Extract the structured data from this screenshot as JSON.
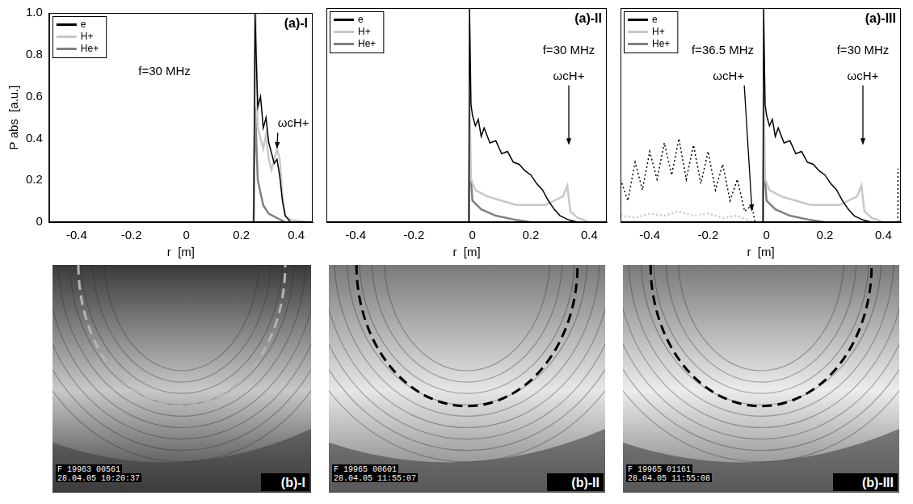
{
  "chart_data": [
    {
      "type": "line",
      "panel_label": "(a)-I",
      "x_label": "r  [m]",
      "y_label": "P abs  [a.u.]",
      "xlim": [
        -0.5,
        0.46
      ],
      "xticks": [
        -0.4,
        -0.2,
        0,
        0.2,
        0.4
      ],
      "ylim": [
        0,
        1
      ],
      "yticks": [
        0,
        0.2,
        0.4,
        0.6,
        0.8,
        {
          "value": 1,
          "label": "1.0"
        }
      ],
      "grid": false,
      "legend": "top-left",
      "annotations": [
        {
          "text": "f=30 MHz",
          "x": -0.08,
          "y": 0.72
        },
        {
          "text": "ωcH+",
          "x": 0.39,
          "y": 0.47,
          "arrow_to": [
            0.33,
            0.35
          ]
        }
      ],
      "series": [
        {
          "name": "e",
          "color": "#000000",
          "line_style": "solid",
          "x": [
            0.245,
            0.25,
            0.255,
            0.26,
            0.27,
            0.28,
            0.29,
            0.3,
            0.31,
            0.32,
            0.33,
            0.34,
            0.35,
            0.36,
            0.38,
            0.45
          ],
          "values": [
            0,
            1.0,
            0.75,
            0.55,
            0.6,
            0.45,
            0.5,
            0.38,
            0.33,
            0.28,
            0.3,
            0.22,
            0.1,
            0.03,
            0,
            0
          ]
        },
        {
          "name": "H+",
          "color": "#c8c8c8",
          "line_style": "solid",
          "x": [
            0.245,
            0.252,
            0.26,
            0.27,
            0.28,
            0.29,
            0.3,
            0.31,
            0.32,
            0.33,
            0.34,
            0.35,
            0.36,
            0.38,
            0.45
          ],
          "values": [
            0,
            1.0,
            0.45,
            0.4,
            0.35,
            0.42,
            0.3,
            0.25,
            0.3,
            0.35,
            0.3,
            0.12,
            0.03,
            0.01,
            0
          ]
        },
        {
          "name": "He+",
          "color": "#808080",
          "line_style": "solid",
          "x": [
            0.245,
            0.25,
            0.26,
            0.28,
            0.3,
            0.33,
            0.36
          ],
          "values": [
            0,
            0.55,
            0.2,
            0.08,
            0.04,
            0.02,
            0
          ]
        }
      ]
    },
    {
      "type": "line",
      "panel_label": "(a)-II",
      "x_label": "r  [m]",
      "xlim": [
        -0.5,
        0.46
      ],
      "xticks": [
        -0.4,
        -0.2,
        0,
        0.2,
        0.4
      ],
      "ylim": [
        0,
        1
      ],
      "yticks": [
        0,
        0.2,
        0.4,
        0.6,
        0.8,
        {
          "value": 1,
          "label": "1.0"
        }
      ],
      "tick_labels": "x",
      "grid": false,
      "legend": "top-left",
      "annotations": [
        {
          "text": "f=30 MHz",
          "x": 0.33,
          "y": 0.8
        },
        {
          "text": "ωcH+",
          "x": 0.33,
          "y": 0.68,
          "arrow_to": [
            0.33,
            0.36
          ]
        }
      ],
      "series": [
        {
          "name": "e",
          "color": "#000000",
          "line_style": "solid",
          "x": [
            -0.03,
            -0.012,
            -0.01,
            -0.005,
            0,
            0.01,
            0.02,
            0.03,
            0.04,
            0.06,
            0.08,
            0.1,
            0.12,
            0.14,
            0.16,
            0.18,
            0.2,
            0.22,
            0.24,
            0.26,
            0.28,
            0.3,
            0.33,
            0.36,
            0.46
          ],
          "values": [
            0,
            0,
            1.0,
            0.55,
            0.5,
            0.45,
            0.48,
            0.4,
            0.44,
            0.37,
            0.38,
            0.32,
            0.33,
            0.28,
            0.27,
            0.24,
            0.22,
            0.18,
            0.15,
            0.1,
            0.06,
            0.03,
            0.01,
            0,
            0
          ]
        },
        {
          "name": "H+",
          "color": "#c8c8c8",
          "line_style": "solid",
          "x": [
            -0.012,
            -0.01,
            -0.005,
            0.01,
            0.05,
            0.1,
            0.15,
            0.2,
            0.25,
            0.28,
            0.31,
            0.325,
            0.335,
            0.36,
            0.4,
            0.46
          ],
          "values": [
            0,
            0.6,
            0.2,
            0.15,
            0.12,
            0.1,
            0.08,
            0.08,
            0.08,
            0.1,
            0.12,
            0.17,
            0.05,
            0.02,
            0,
            0
          ]
        },
        {
          "name": "He+",
          "color": "#808080",
          "line_style": "solid",
          "x": [
            -0.012,
            -0.01,
            0,
            0.03,
            0.08,
            0.15,
            0.2,
            0.3
          ],
          "values": [
            0,
            0.3,
            0.1,
            0.06,
            0.03,
            0.01,
            0,
            0
          ]
        }
      ]
    },
    {
      "type": "line",
      "panel_label": "(a)-III",
      "x_label": "r  [m]",
      "xlim": [
        -0.5,
        0.46
      ],
      "xticks": [
        -0.4,
        -0.2,
        0,
        0.2,
        0.4
      ],
      "ylim": [
        0,
        1
      ],
      "yticks": [
        0,
        0.2,
        0.4,
        0.6,
        0.8,
        {
          "value": 1,
          "label": "1.0"
        }
      ],
      "tick_labels": "x",
      "grid": false,
      "legend": "top-left",
      "annotations": [
        {
          "text": "f=36.5 MHz",
          "x": -0.15,
          "y": 0.8
        },
        {
          "text": "ωcH+",
          "x": -0.13,
          "y": 0.68,
          "arrow_to": [
            -0.05,
            0.05
          ]
        },
        {
          "text": "f=30 MHz",
          "x": 0.33,
          "y": 0.8
        },
        {
          "text": "ωcH+",
          "x": 0.33,
          "y": 0.68,
          "arrow_to": [
            0.33,
            0.36
          ]
        }
      ],
      "series": [
        {
          "name": "e",
          "color": "#000000",
          "line_style": "solid",
          "x": [
            -0.03,
            -0.012,
            -0.01,
            -0.005,
            0,
            0.01,
            0.02,
            0.03,
            0.04,
            0.06,
            0.08,
            0.1,
            0.12,
            0.14,
            0.16,
            0.18,
            0.2,
            0.22,
            0.24,
            0.26,
            0.28,
            0.3,
            0.33,
            0.36,
            0.46
          ],
          "values": [
            0,
            0,
            1.0,
            0.55,
            0.5,
            0.45,
            0.48,
            0.4,
            0.44,
            0.37,
            0.38,
            0.32,
            0.33,
            0.28,
            0.27,
            0.24,
            0.22,
            0.18,
            0.15,
            0.1,
            0.06,
            0.03,
            0.01,
            0,
            0
          ]
        },
        {
          "name": "H+",
          "color": "#c8c8c8",
          "line_style": "solid",
          "x": [
            -0.012,
            -0.01,
            -0.005,
            0.01,
            0.05,
            0.1,
            0.15,
            0.2,
            0.25,
            0.28,
            0.31,
            0.325,
            0.335,
            0.36,
            0.4,
            0.46
          ],
          "values": [
            0,
            0.6,
            0.2,
            0.15,
            0.12,
            0.1,
            0.08,
            0.08,
            0.08,
            0.1,
            0.12,
            0.17,
            0.05,
            0.02,
            0,
            0
          ]
        },
        {
          "name": "He+",
          "color": "#808080",
          "line_style": "solid",
          "x": [
            -0.012,
            -0.01,
            0,
            0.03,
            0.08,
            0.15,
            0.2,
            0.3
          ],
          "values": [
            0,
            0.3,
            0.1,
            0.06,
            0.03,
            0.01,
            0,
            0
          ]
        },
        {
          "name": "e",
          "color": "#000000",
          "line_style": "dotted",
          "x": [
            -0.5,
            -0.475,
            -0.45,
            -0.425,
            -0.4,
            -0.375,
            -0.35,
            -0.325,
            -0.3,
            -0.275,
            -0.25,
            -0.225,
            -0.2,
            -0.175,
            -0.15,
            -0.125,
            -0.1,
            -0.075,
            -0.05,
            -0.04,
            0.2,
            0.45,
            0.45
          ],
          "values": [
            0.2,
            0.1,
            0.28,
            0.15,
            0.33,
            0.2,
            0.37,
            0.22,
            0.39,
            0.2,
            0.36,
            0.18,
            0.33,
            0.15,
            0.27,
            0.1,
            0.2,
            0.05,
            0.08,
            0,
            null,
            0,
            0.25
          ]
        },
        {
          "name": "H+",
          "color": "#c8c8c8",
          "line_style": "dotted",
          "x": [
            -0.5,
            -0.45,
            -0.4,
            -0.35,
            -0.3,
            -0.25,
            -0.2,
            -0.15,
            -0.1,
            -0.05
          ],
          "values": [
            0.03,
            0.02,
            0.04,
            0.03,
            0.05,
            0.03,
            0.04,
            0.02,
            0.03,
            0
          ]
        }
      ]
    }
  ],
  "photos": [
    {
      "label": "(b)-I",
      "stamp": [
        "F 19963 00561",
        "28.04.05 10:20:37"
      ],
      "arc_color": "#b4b4b4"
    },
    {
      "label": "(b)-II",
      "stamp": [
        "F 19965 00601",
        "28.04.05 11:55:07"
      ],
      "arc_color": "#000000"
    },
    {
      "label": "(b)-III",
      "stamp": [
        "F 19965 01161",
        "28.04.05 11:55:08"
      ],
      "arc_color": "#000000"
    }
  ]
}
